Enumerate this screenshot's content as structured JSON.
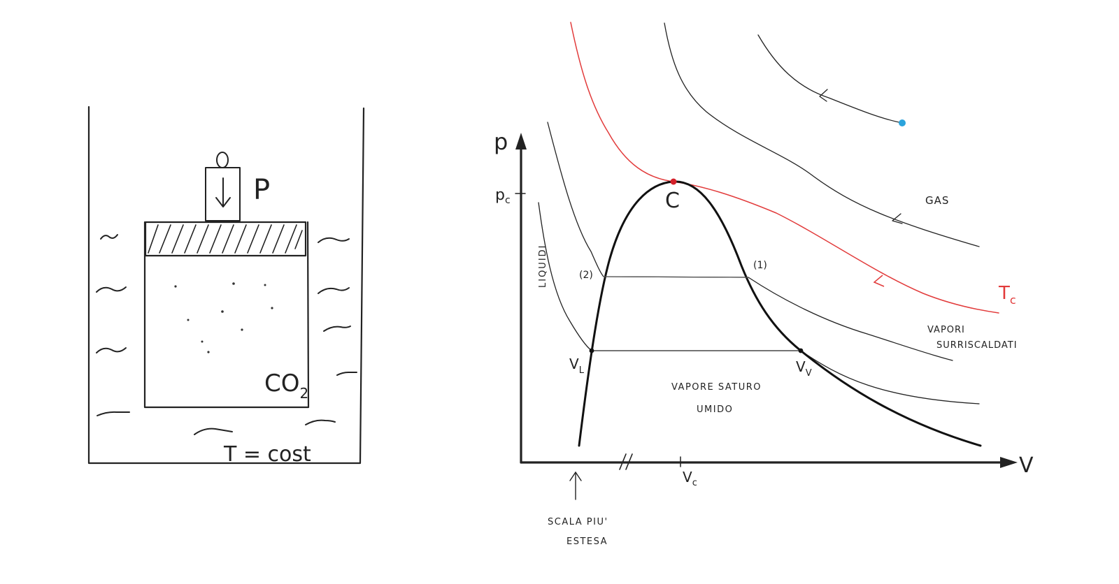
{
  "left_figure": {
    "pressure_label": "P",
    "gas_label": "CO",
    "gas_subscript": "2",
    "bath_label": "T = cost"
  },
  "diagram": {
    "y_axis_label": "p",
    "x_axis_label": "V",
    "pc_label": "p",
    "pc_subscript": "c",
    "vc_label": "V",
    "vc_subscript": "c",
    "critical_point_label": "C",
    "point_1_label": "(1)",
    "point_2_label": "(2)",
    "vl_label": "V",
    "vl_subscript": "L",
    "vv_label": "V",
    "vv_subscript": "V",
    "tc_label": "T",
    "tc_subscript": "c",
    "region_liquids": "LIQUIDI",
    "region_gas": "GAS",
    "region_superheated_line1": "VAPORI",
    "region_superheated_line2": "SURRISCALDATI",
    "region_wet_line1": "VAPORE SATURO",
    "region_wet_line2": "UMIDO",
    "scale_note_line1": "SCALA PIU'",
    "scale_note_line2": "ESTESA",
    "colors": {
      "critical_isotherm": "#e23b3b",
      "critical_point": "#d4202a",
      "state_point": "#2ba3dc",
      "ink": "#222222"
    }
  }
}
